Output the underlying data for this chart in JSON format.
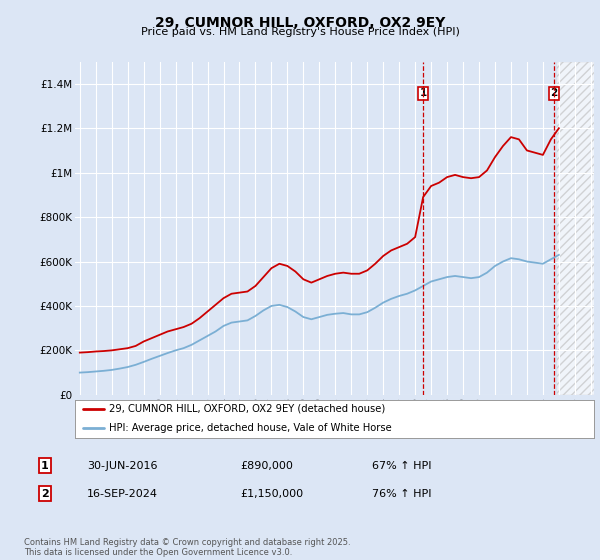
{
  "title": "29, CUMNOR HILL, OXFORD, OX2 9EY",
  "subtitle": "Price paid vs. HM Land Registry's House Price Index (HPI)",
  "background_color": "#dce6f5",
  "red_color": "#cc0000",
  "blue_color": "#7bafd4",
  "dashed_red": "#cc0000",
  "ylim": [
    0,
    1500000
  ],
  "yticks": [
    0,
    200000,
    400000,
    600000,
    800000,
    1000000,
    1200000,
    1400000
  ],
  "ytick_labels": [
    "£0",
    "£200K",
    "£400K",
    "£600K",
    "£800K",
    "£1M",
    "£1.2M",
    "£1.4M"
  ],
  "xmin_year": 1995,
  "xmax_year": 2027,
  "xticks": [
    1995,
    1996,
    1997,
    1998,
    1999,
    2000,
    2001,
    2002,
    2003,
    2004,
    2005,
    2006,
    2007,
    2008,
    2009,
    2010,
    2011,
    2012,
    2013,
    2014,
    2015,
    2016,
    2017,
    2018,
    2019,
    2020,
    2021,
    2022,
    2023,
    2024,
    2025,
    2026,
    2027
  ],
  "marker1_x": 2016.5,
  "marker1_label": "1",
  "marker1_date": "30-JUN-2016",
  "marker1_price": "£890,000",
  "marker1_hpi": "67% ↑ HPI",
  "marker2_x": 2024.71,
  "marker2_label": "2",
  "marker2_date": "16-SEP-2024",
  "marker2_price": "£1,150,000",
  "marker2_hpi": "76% ↑ HPI",
  "legend_line1": "29, CUMNOR HILL, OXFORD, OX2 9EY (detached house)",
  "legend_line2": "HPI: Average price, detached house, Vale of White Horse",
  "footnote": "Contains HM Land Registry data © Crown copyright and database right 2025.\nThis data is licensed under the Open Government Licence v3.0.",
  "red_x": [
    1995.0,
    1995.5,
    1996.0,
    1996.5,
    1997.0,
    1997.5,
    1998.0,
    1998.5,
    1999.0,
    1999.5,
    2000.0,
    2000.5,
    2001.0,
    2001.5,
    2002.0,
    2002.5,
    2003.0,
    2003.5,
    2004.0,
    2004.5,
    2005.0,
    2005.5,
    2006.0,
    2006.5,
    2007.0,
    2007.5,
    2008.0,
    2008.5,
    2009.0,
    2009.5,
    2010.0,
    2010.5,
    2011.0,
    2011.5,
    2012.0,
    2012.5,
    2013.0,
    2013.5,
    2014.0,
    2014.5,
    2015.0,
    2015.5,
    2016.0,
    2016.5,
    2017.0,
    2017.5,
    2018.0,
    2018.5,
    2019.0,
    2019.5,
    2020.0,
    2020.5,
    2021.0,
    2021.5,
    2022.0,
    2022.5,
    2023.0,
    2023.5,
    2024.0,
    2024.5,
    2025.0
  ],
  "red_y": [
    190000,
    192000,
    195000,
    197000,
    200000,
    205000,
    210000,
    220000,
    240000,
    255000,
    270000,
    285000,
    295000,
    305000,
    320000,
    345000,
    375000,
    405000,
    435000,
    455000,
    460000,
    465000,
    490000,
    530000,
    570000,
    590000,
    580000,
    555000,
    520000,
    505000,
    520000,
    535000,
    545000,
    550000,
    545000,
    545000,
    560000,
    590000,
    625000,
    650000,
    665000,
    680000,
    710000,
    890000,
    940000,
    955000,
    980000,
    990000,
    980000,
    975000,
    980000,
    1010000,
    1070000,
    1120000,
    1160000,
    1150000,
    1100000,
    1090000,
    1080000,
    1150000,
    1200000
  ],
  "blue_x": [
    1995.0,
    1995.5,
    1996.0,
    1996.5,
    1997.0,
    1997.5,
    1998.0,
    1998.5,
    1999.0,
    1999.5,
    2000.0,
    2000.5,
    2001.0,
    2001.5,
    2002.0,
    2002.5,
    2003.0,
    2003.5,
    2004.0,
    2004.5,
    2005.0,
    2005.5,
    2006.0,
    2006.5,
    2007.0,
    2007.5,
    2008.0,
    2008.5,
    2009.0,
    2009.5,
    2010.0,
    2010.5,
    2011.0,
    2011.5,
    2012.0,
    2012.5,
    2013.0,
    2013.5,
    2014.0,
    2014.5,
    2015.0,
    2015.5,
    2016.0,
    2016.5,
    2017.0,
    2017.5,
    2018.0,
    2018.5,
    2019.0,
    2019.5,
    2020.0,
    2020.5,
    2021.0,
    2021.5,
    2022.0,
    2022.5,
    2023.0,
    2023.5,
    2024.0,
    2024.5,
    2025.0
  ],
  "blue_y": [
    100000,
    102000,
    105000,
    108000,
    112000,
    118000,
    125000,
    135000,
    148000,
    162000,
    175000,
    188000,
    200000,
    210000,
    225000,
    245000,
    265000,
    285000,
    310000,
    325000,
    330000,
    335000,
    355000,
    380000,
    400000,
    405000,
    395000,
    375000,
    350000,
    340000,
    350000,
    360000,
    365000,
    368000,
    362000,
    362000,
    372000,
    392000,
    415000,
    432000,
    445000,
    455000,
    470000,
    490000,
    510000,
    520000,
    530000,
    535000,
    530000,
    525000,
    530000,
    550000,
    580000,
    600000,
    615000,
    610000,
    600000,
    595000,
    590000,
    610000,
    630000
  ],
  "hatching_x1": 2024.9,
  "hatching_x2": 2027.5
}
